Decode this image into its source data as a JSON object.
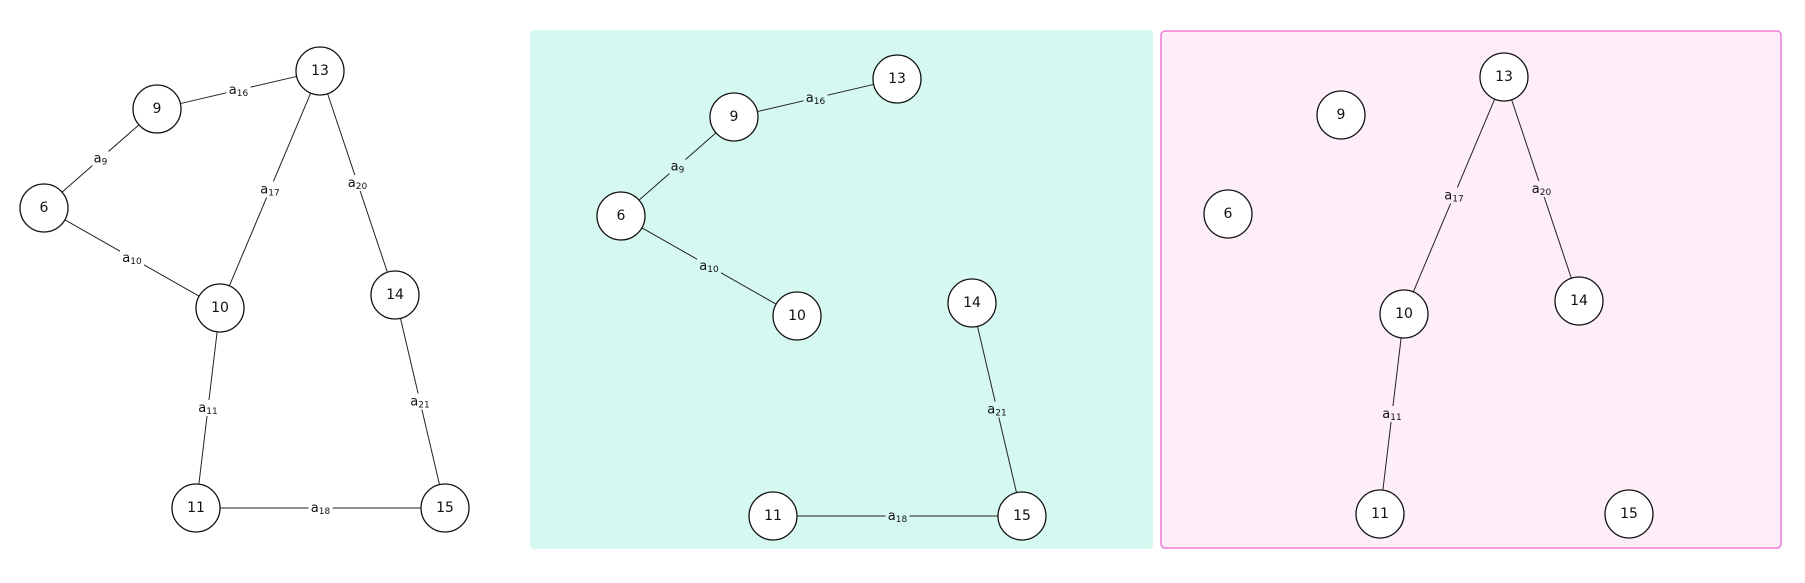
{
  "panels": [
    {
      "id": "full-graph",
      "background": "none",
      "border": "none",
      "nodes": [
        "6",
        "9",
        "10",
        "11",
        "13",
        "14",
        "15"
      ],
      "edges": [
        {
          "from": "9",
          "to": "13",
          "label": "a",
          "sub": "16"
        },
        {
          "from": "6",
          "to": "9",
          "label": "a",
          "sub": "9"
        },
        {
          "from": "6",
          "to": "10",
          "label": "a",
          "sub": "10"
        },
        {
          "from": "10",
          "to": "13",
          "label": "a",
          "sub": "17"
        },
        {
          "from": "13",
          "to": "14",
          "label": "a",
          "sub": "20"
        },
        {
          "from": "10",
          "to": "11",
          "label": "a",
          "sub": "11"
        },
        {
          "from": "14",
          "to": "15",
          "label": "a",
          "sub": "21"
        },
        {
          "from": "11",
          "to": "15",
          "label": "a",
          "sub": "18"
        }
      ]
    },
    {
      "id": "subgraph-teal",
      "background": "#d5f8f1",
      "border": "none",
      "nodes": [
        "6",
        "9",
        "10",
        "11",
        "13",
        "14",
        "15"
      ],
      "edges": [
        {
          "from": "9",
          "to": "13",
          "label": "a",
          "sub": "16"
        },
        {
          "from": "6",
          "to": "9",
          "label": "a",
          "sub": "9"
        },
        {
          "from": "6",
          "to": "10",
          "label": "a",
          "sub": "10"
        },
        {
          "from": "14",
          "to": "15",
          "label": "a",
          "sub": "21"
        },
        {
          "from": "11",
          "to": "15",
          "label": "a",
          "sub": "18"
        }
      ]
    },
    {
      "id": "subgraph-pink",
      "background": "#fdeefa",
      "border": "#f07ad6",
      "nodes": [
        "6",
        "9",
        "10",
        "11",
        "13",
        "14",
        "15"
      ],
      "edges": [
        {
          "from": "10",
          "to": "13",
          "label": "a",
          "sub": "17"
        },
        {
          "from": "13",
          "to": "14",
          "label": "a",
          "sub": "20"
        },
        {
          "from": "10",
          "to": "11",
          "label": "a",
          "sub": "11"
        }
      ]
    }
  ]
}
